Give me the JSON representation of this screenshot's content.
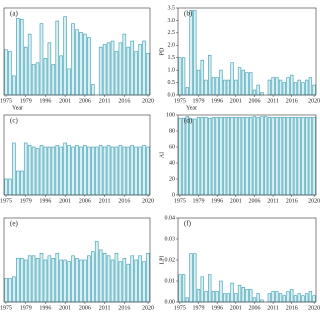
{
  "chart_data": [
    {
      "type": "bar",
      "title": "(a)",
      "xlabel": "Year",
      "color": "#d6f0f4",
      "ylim": [
        0,
        100
      ],
      "categories": [
        "1975",
        null,
        null,
        null,
        null,
        "1979",
        null,
        null,
        null,
        null,
        "1996",
        null,
        null,
        null,
        null,
        "2001",
        null,
        null,
        null,
        null,
        "2006",
        null,
        null,
        null,
        null,
        "2011",
        null,
        null,
        null,
        null,
        "2016",
        null,
        null,
        null,
        null,
        null,
        "2020"
      ],
      "values": [
        52,
        50,
        22,
        88,
        87,
        55,
        70,
        35,
        37,
        82,
        42,
        60,
        35,
        85,
        45,
        90,
        30,
        82,
        75,
        72,
        70,
        66,
        12,
        0,
        55,
        58,
        60,
        62,
        50,
        60,
        70,
        55,
        62,
        50,
        58,
        62,
        48
      ]
    },
    {
      "type": "bar",
      "title": "(b)",
      "xlabel": "Year",
      "ylabel": "PD",
      "color": "#d6f0f4",
      "ylim": [
        0,
        3.5
      ],
      "yticks": [
        {
          "value": 0,
          "label": "0.0"
        },
        0.5,
        {
          "value": 1,
          "label": "1.0"
        },
        1.5,
        {
          "value": 2,
          "label": "2.0"
        },
        2.5,
        {
          "value": 3,
          "label": "3.0"
        },
        3.5
      ],
      "categories": [
        "1975",
        null,
        null,
        null,
        null,
        "1979",
        null,
        null,
        null,
        null,
        "1996",
        null,
        null,
        null,
        null,
        "2001",
        null,
        null,
        null,
        null,
        "2006",
        null,
        null,
        null,
        null,
        "2011",
        null,
        null,
        null,
        null,
        "2016",
        null,
        null,
        null,
        null,
        null,
        "2020"
      ],
      "values": [
        1.5,
        1.5,
        0.3,
        3.4,
        3.4,
        1.0,
        1.4,
        0.6,
        1.6,
        0.7,
        0.7,
        1.0,
        0.6,
        0.6,
        1.3,
        0.6,
        1.1,
        1.0,
        0.9,
        0.9,
        0.2,
        0.4,
        0.1,
        0,
        0.6,
        0.7,
        0.7,
        0.6,
        0.5,
        0.7,
        0.8,
        0.5,
        0.6,
        0.5,
        0.6,
        0.7,
        0.4
      ]
    },
    {
      "type": "bar",
      "title": "(c)",
      "color": "#d6f0f4",
      "ylim": [
        0,
        100
      ],
      "categories": [
        "1975",
        null,
        null,
        null,
        null,
        "1979",
        null,
        null,
        null,
        null,
        "1996",
        null,
        null,
        null,
        null,
        "2001",
        null,
        null,
        null,
        null,
        "2006",
        null,
        null,
        null,
        null,
        "2011",
        null,
        null,
        null,
        null,
        "2016",
        null,
        null,
        null,
        null,
        null,
        "2020"
      ],
      "values": [
        20,
        20,
        65,
        30,
        30,
        65,
        62,
        60,
        58,
        62,
        60,
        60,
        60,
        62,
        60,
        65,
        62,
        60,
        62,
        60,
        62,
        60,
        60,
        60,
        62,
        60,
        62,
        60,
        60,
        62,
        60,
        60,
        62,
        60,
        60,
        62,
        60
      ]
    },
    {
      "type": "bar",
      "title": "(d)",
      "ylabel": "AI",
      "color": "#d6f0f4",
      "ylim": [
        0,
        100
      ],
      "yticks": [
        0,
        20,
        40,
        60,
        80,
        100
      ],
      "categories": [
        "1975",
        null,
        null,
        null,
        null,
        "1979",
        null,
        null,
        null,
        null,
        "1996",
        null,
        null,
        null,
        null,
        "2001",
        null,
        null,
        null,
        null,
        "2006",
        null,
        null,
        null,
        null,
        "2011",
        null,
        null,
        null,
        null,
        "2016",
        null,
        null,
        null,
        null,
        null,
        "2020"
      ],
      "values": [
        96,
        96,
        98,
        95,
        95,
        97,
        97,
        97,
        96,
        97,
        97,
        97,
        97,
        97,
        97,
        97,
        97,
        97,
        97,
        97,
        98,
        97,
        98,
        98,
        97,
        97,
        97,
        97,
        97,
        97,
        97,
        97,
        97,
        97,
        97,
        97,
        97
      ]
    },
    {
      "type": "bar",
      "title": "(e)",
      "color": "#d6f0f4",
      "ylim": [
        0,
        100
      ],
      "categories": [
        "1975",
        null,
        null,
        null,
        null,
        "1979",
        null,
        null,
        null,
        null,
        "1996",
        null,
        null,
        null,
        null,
        "2001",
        null,
        null,
        null,
        null,
        "2006",
        null,
        null,
        null,
        null,
        "2011",
        null,
        null,
        null,
        null,
        "2016",
        null,
        null,
        null,
        null,
        null,
        "2020"
      ],
      "values": [
        28,
        28,
        30,
        52,
        52,
        50,
        55,
        55,
        52,
        58,
        50,
        55,
        52,
        58,
        50,
        50,
        48,
        55,
        52,
        50,
        50,
        55,
        60,
        72,
        62,
        58,
        55,
        50,
        58,
        48,
        52,
        45,
        55,
        50,
        55,
        48,
        58
      ]
    },
    {
      "type": "bar",
      "title": "(f)",
      "ylabel": "LPI",
      "color": "#d6f0f4",
      "ylim": [
        0,
        0.04
      ],
      "yticks": [
        {
          "value": 0,
          "label": "0.00"
        },
        0.01,
        0.02,
        0.03,
        0.04
      ],
      "categories": [
        "1975",
        null,
        null,
        null,
        null,
        "1979",
        null,
        null,
        null,
        null,
        "1996",
        null,
        null,
        null,
        null,
        "2001",
        null,
        null,
        null,
        null,
        "2006",
        null,
        null,
        null,
        null,
        "2011",
        null,
        null,
        null,
        null,
        "2016",
        null,
        null,
        null,
        null,
        null,
        "2020"
      ],
      "values": [
        0.013,
        0.013,
        0.002,
        0.023,
        0.023,
        0.006,
        0.012,
        0.005,
        0.013,
        0.005,
        0.005,
        0.01,
        0.004,
        0.004,
        0.009,
        0.004,
        0.008,
        0.007,
        0.006,
        0.006,
        0.002,
        0.004,
        0.001,
        0,
        0.004,
        0.005,
        0.005,
        0.004,
        0.003,
        0.005,
        0.006,
        0.003,
        0.004,
        0.003,
        0.004,
        0.005,
        0.003
      ]
    }
  ]
}
